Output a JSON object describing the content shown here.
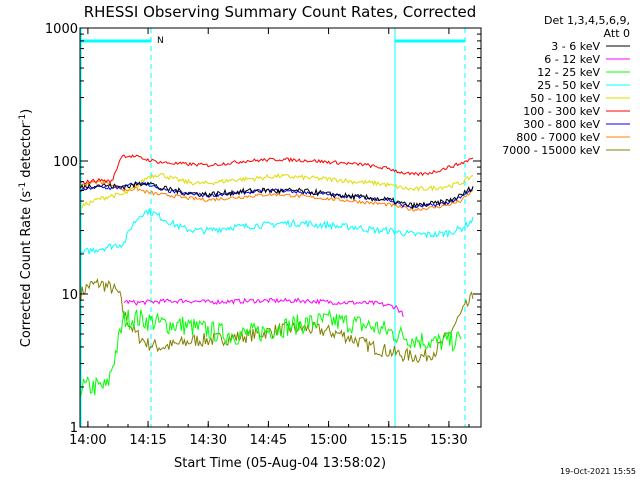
{
  "chart_data": {
    "type": "line",
    "title": "RHESSI Observing Summary Count Rates, Corrected",
    "xlabel": "Start Time (05-Aug-04 13:58:02)",
    "ylabel_main": "Corrected Count Rate (s",
    "ylabel_sup1": "-1",
    "ylabel_mid": " detector",
    "ylabel_sup2": "-1",
    "ylabel_end": ")",
    "yscale": "log",
    "ylim": [
      1,
      1000
    ],
    "xlim": [
      13.9672,
      15.6333
    ],
    "x_ticks": [
      {
        "value": 14.0,
        "label": "14:00"
      },
      {
        "value": 14.25,
        "label": "14:15"
      },
      {
        "value": 14.5,
        "label": "14:30"
      },
      {
        "value": 14.75,
        "label": "14:45"
      },
      {
        "value": 15.0,
        "label": "15:00"
      },
      {
        "value": 15.25,
        "label": "15:15"
      },
      {
        "value": 15.5,
        "label": "15:30"
      }
    ],
    "y_ticks": [
      {
        "value": 1,
        "label": "1"
      },
      {
        "value": 10,
        "label": "10"
      },
      {
        "value": 100,
        "label": "100"
      },
      {
        "value": 1000,
        "label": "1000"
      }
    ],
    "legend_header": [
      "Det 1,3,4,5,6,9,",
      "Att 0"
    ],
    "series": [
      {
        "name": "3 - 6 keV",
        "color": "#000000",
        "x": [
          13.97,
          14.0,
          14.05,
          14.12,
          14.18,
          14.25,
          14.3,
          14.35,
          14.4,
          14.45,
          14.5,
          14.55,
          14.6,
          14.65,
          14.7,
          14.75,
          14.8,
          14.85,
          14.9,
          14.95,
          15.0,
          15.05,
          15.1,
          15.15,
          15.2,
          15.25,
          15.3,
          15.35,
          15.4,
          15.45,
          15.5,
          15.55,
          15.6
        ],
        "y": [
          63,
          65,
          66,
          64,
          65,
          70,
          62,
          61,
          58,
          57,
          56,
          57,
          58,
          59,
          60,
          60,
          59,
          60,
          59,
          58,
          56,
          55,
          54,
          53,
          52,
          51,
          48,
          46,
          47,
          48,
          50,
          55,
          64
        ]
      },
      {
        "name": "6 - 12 keV",
        "color": "#ff00ff",
        "x": [
          14.15,
          14.2,
          14.3,
          14.4,
          14.5,
          14.6,
          14.7,
          14.8,
          14.9,
          15.0,
          15.1,
          15.2,
          15.28,
          15.31
        ],
        "y": [
          8.8,
          8.6,
          8.8,
          8.9,
          8.7,
          8.8,
          8.9,
          8.9,
          8.9,
          8.7,
          8.6,
          8.5,
          8.0,
          7.0
        ]
      },
      {
        "name": "12 - 25 keV",
        "color": "#00ff00",
        "x": [
          13.97,
          14.0,
          14.08,
          14.15,
          14.2,
          14.3,
          14.4,
          14.5,
          14.6,
          14.7,
          14.8,
          14.9,
          15.0,
          15.1,
          15.2,
          15.28,
          15.35,
          15.45,
          15.55
        ],
        "y": [
          2.0,
          2.0,
          2.0,
          6.5,
          6.6,
          6.0,
          5.8,
          5.3,
          4.9,
          5.1,
          5.6,
          6.0,
          6.3,
          6.0,
          5.6,
          5.0,
          4.6,
          4.3,
          4.5
        ]
      },
      {
        "name": "25 - 50 keV",
        "color": "#00ffff",
        "x": [
          13.97,
          14.0,
          14.05,
          14.1,
          14.15,
          14.18,
          14.22,
          14.25,
          14.28,
          14.3,
          14.35,
          14.4,
          14.45,
          14.5,
          14.55,
          14.6,
          14.65,
          14.7,
          14.75,
          14.8,
          14.85,
          14.9,
          14.95,
          15.0,
          15.05,
          15.1,
          15.15,
          15.2,
          15.25,
          15.3,
          15.35,
          15.4,
          15.45,
          15.5,
          15.55,
          15.6
        ],
        "y": [
          20,
          21,
          22,
          23,
          24,
          32,
          40,
          42,
          40,
          38,
          34,
          31,
          30,
          30,
          31,
          32,
          32,
          33,
          33,
          34,
          34,
          34,
          33,
          33,
          32,
          32,
          31,
          30,
          30,
          29,
          28,
          28,
          28,
          29,
          31,
          36
        ]
      },
      {
        "name": "50 - 100 keV",
        "color": "#dddd00",
        "x": [
          13.97,
          14.0,
          14.05,
          14.1,
          14.15,
          14.2,
          14.25,
          14.3,
          14.35,
          14.4,
          14.45,
          14.5,
          14.55,
          14.6,
          14.65,
          14.7,
          14.75,
          14.8,
          14.85,
          14.9,
          14.95,
          15.0,
          15.05,
          15.1,
          15.15,
          15.2,
          15.25,
          15.3,
          15.35,
          15.4,
          15.45,
          15.5,
          15.55,
          15.6
        ],
        "y": [
          45,
          48,
          52,
          55,
          56,
          64,
          76,
          80,
          74,
          70,
          68,
          68,
          70,
          72,
          73,
          74,
          76,
          77,
          76,
          75,
          74,
          73,
          72,
          70,
          69,
          68,
          66,
          63,
          61,
          62,
          63,
          65,
          68,
          78
        ]
      },
      {
        "name": "100 - 300 keV",
        "color": "#ff0000",
        "x": [
          13.97,
          14.0,
          14.05,
          14.1,
          14.14,
          14.2,
          14.25,
          14.3,
          14.35,
          14.4,
          14.45,
          14.5,
          14.55,
          14.6,
          14.65,
          14.7,
          14.75,
          14.8,
          14.85,
          14.9,
          14.95,
          15.0,
          15.05,
          15.1,
          15.15,
          15.2,
          15.25,
          15.3,
          15.35,
          15.4,
          15.45,
          15.5,
          15.55,
          15.6
        ],
        "y": [
          68,
          70,
          72,
          70,
          110,
          108,
          102,
          98,
          96,
          95,
          94,
          93,
          95,
          97,
          100,
          101,
          102,
          103,
          102,
          101,
          100,
          98,
          97,
          95,
          94,
          90,
          88,
          82,
          79,
          80,
          84,
          90,
          96,
          105
        ]
      },
      {
        "name": "300 - 800 keV",
        "color": "#0000ff",
        "x": [
          13.97,
          14.0,
          14.05,
          14.1,
          14.15,
          14.2,
          14.25,
          14.3,
          14.35,
          14.4,
          14.45,
          14.5,
          14.55,
          14.6,
          14.65,
          14.7,
          14.75,
          14.8,
          14.85,
          14.9,
          14.95,
          15.0,
          15.05,
          15.1,
          15.15,
          15.2,
          15.25,
          15.3,
          15.35,
          15.4,
          15.45,
          15.5,
          15.55,
          15.6
        ],
        "y": [
          60,
          62,
          64,
          62,
          64,
          68,
          67,
          61,
          59,
          57,
          56,
          55,
          56,
          57,
          58,
          59,
          60,
          60,
          59,
          58,
          57,
          56,
          55,
          54,
          53,
          52,
          51,
          47,
          45,
          46,
          47,
          49,
          53,
          62
        ]
      },
      {
        "name": "800 - 7000 keV",
        "color": "#ff8000",
        "x": [
          13.97,
          14.0,
          14.05,
          14.1,
          14.15,
          14.2,
          14.25,
          14.3,
          14.35,
          14.4,
          14.45,
          14.5,
          14.55,
          14.6,
          14.65,
          14.7,
          14.75,
          14.8,
          14.85,
          14.9,
          14.95,
          15.0,
          15.05,
          15.1,
          15.15,
          15.2,
          15.25,
          15.3,
          15.35,
          15.4,
          15.45,
          15.5,
          15.55,
          15.6
        ],
        "y": [
          65,
          68,
          70,
          67,
          60,
          62,
          58,
          56,
          55,
          53,
          52,
          51,
          52,
          53,
          54,
          55,
          56,
          56,
          55,
          54,
          53,
          52,
          51,
          50,
          49,
          48,
          47,
          45,
          43,
          44,
          45,
          47,
          50,
          60
        ]
      },
      {
        "name": "7000 - 15000 keV",
        "color": "#808000",
        "x": [
          13.97,
          14.0,
          14.05,
          14.1,
          14.13,
          14.15,
          14.2,
          14.25,
          14.3,
          14.35,
          14.4,
          14.45,
          14.5,
          14.55,
          14.6,
          14.65,
          14.7,
          14.75,
          14.8,
          14.85,
          14.9,
          14.95,
          15.0,
          15.05,
          15.1,
          15.15,
          15.2,
          15.25,
          15.3,
          15.35,
          15.4,
          15.45,
          15.5,
          15.55,
          15.6
        ],
        "y": [
          10,
          11.5,
          12,
          11,
          10,
          7,
          5,
          4.2,
          4.0,
          4.1,
          4.3,
          4.5,
          4.5,
          4.6,
          4.7,
          4.8,
          5.0,
          5.2,
          5.4,
          5.5,
          5.5,
          5.4,
          5.2,
          5.0,
          4.6,
          4.2,
          3.9,
          3.7,
          3.5,
          3.4,
          3.4,
          3.8,
          5.0,
          7.0,
          9.5
        ]
      }
    ],
    "attenuator_flag_label": "N",
    "timestamp": "19-Oct-2021 15:55"
  }
}
